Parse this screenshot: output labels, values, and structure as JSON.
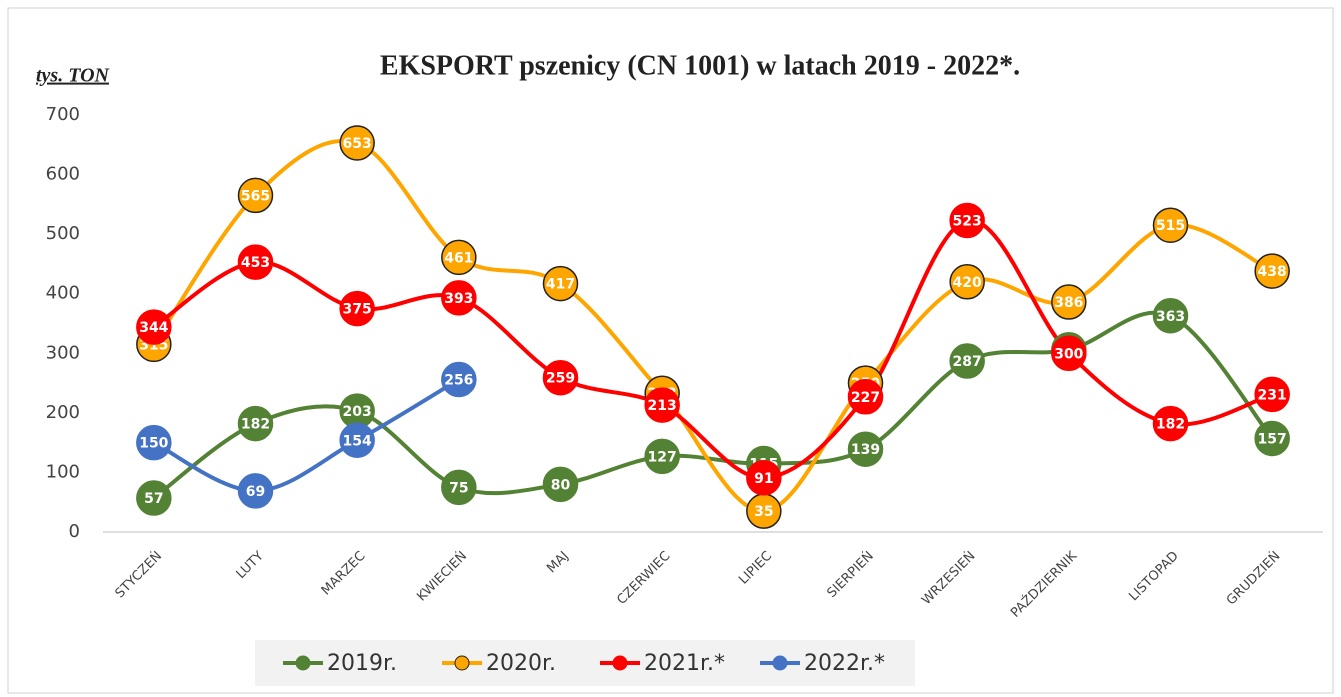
{
  "chart_data": {
    "type": "line",
    "title": "EKSPORT pszenicy (CN 1001) w latach 2019 - 2022*.",
    "y_label": "tys. TON",
    "categories": [
      "STYCZEŃ",
      "LUTY",
      "MARZEC",
      "KWIECIEŃ",
      "MAJ",
      "CZERWIEC",
      "LIPIEC",
      "SIERPIEŃ",
      "WRZESIEŃ",
      "PAŹDZIERNIK",
      "LISTOPAD",
      "GRUDZIEŃ"
    ],
    "series": [
      {
        "name": "2019r.",
        "color": "#548235",
        "values": [
          57,
          182,
          203,
          75,
          80,
          127,
          115,
          139,
          287,
          306,
          363,
          157
        ]
      },
      {
        "name": "2020r.",
        "color": "#FFA500",
        "values": [
          315,
          565,
          653,
          461,
          417,
          233,
          35,
          250,
          420,
          386,
          515,
          438
        ]
      },
      {
        "name": "2021r.*",
        "color": "#FF0000",
        "values": [
          344,
          453,
          375,
          393,
          259,
          213,
          91,
          227,
          523,
          300,
          182,
          231
        ]
      },
      {
        "name": "2022r.*",
        "color": "#4472C4",
        "values": [
          150,
          69,
          154,
          256,
          null,
          null,
          null,
          null,
          null,
          null,
          null,
          null
        ]
      }
    ],
    "ylim": [
      0,
      700
    ],
    "yticks": [
      0,
      100,
      200,
      300,
      400,
      500,
      600,
      700
    ],
    "grid": false,
    "legend": "bottom"
  }
}
